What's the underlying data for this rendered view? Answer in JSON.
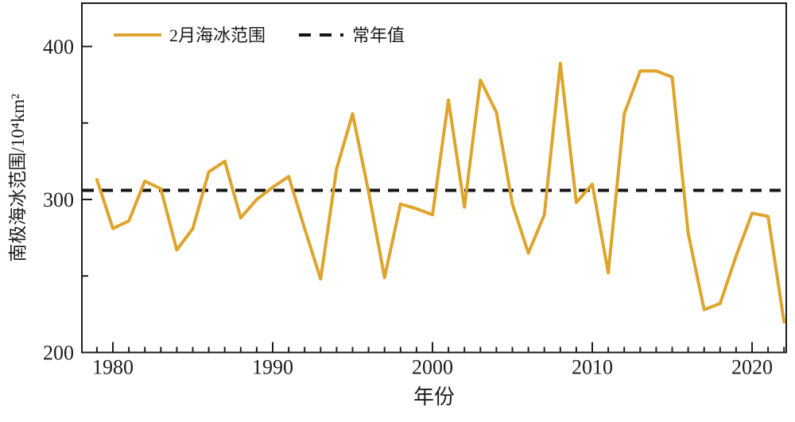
{
  "chart_data": {
    "type": "line",
    "title": "",
    "xlabel": "年份",
    "ylabel": "南极海冰范围/10⁴km²",
    "x": [
      1979,
      1980,
      1981,
      1982,
      1983,
      1984,
      1985,
      1986,
      1987,
      1988,
      1989,
      1990,
      1991,
      1992,
      1993,
      1994,
      1995,
      1996,
      1997,
      1998,
      1999,
      2000,
      2001,
      2002,
      2003,
      2004,
      2005,
      2006,
      2007,
      2008,
      2009,
      2010,
      2011,
      2012,
      2013,
      2014,
      2015,
      2016,
      2017,
      2018,
      2019,
      2020,
      2021,
      2022
    ],
    "series": [
      {
        "name": "2月海冰范围",
        "color": "#DEA42C",
        "style": "solid",
        "values": [
          313,
          281,
          286,
          312,
          307,
          267,
          281,
          318,
          325,
          288,
          300,
          308,
          315,
          281,
          248,
          320,
          356,
          305,
          249,
          297,
          294,
          290,
          365,
          295,
          378,
          357,
          297,
          265,
          290,
          389,
          298,
          310,
          252,
          356,
          384,
          384,
          380,
          278,
          228,
          232,
          263,
          291,
          289,
          220
        ]
      },
      {
        "name": "常年值",
        "color": "#151515",
        "style": "dashed",
        "constant": 306
      }
    ],
    "xlim": [
      1978,
      2022.3
    ],
    "ylim": [
      200,
      428
    ],
    "yticks_major": [
      200,
      300,
      400
    ],
    "yticks_minor": [
      250,
      350
    ],
    "xticks_labeled": [
      1980,
      1990,
      2000,
      2010,
      2020
    ],
    "xticks_minor_every_year": true,
    "grid": false,
    "legend_position": "top-left-inside",
    "axis_color": "#1c1c1c"
  }
}
